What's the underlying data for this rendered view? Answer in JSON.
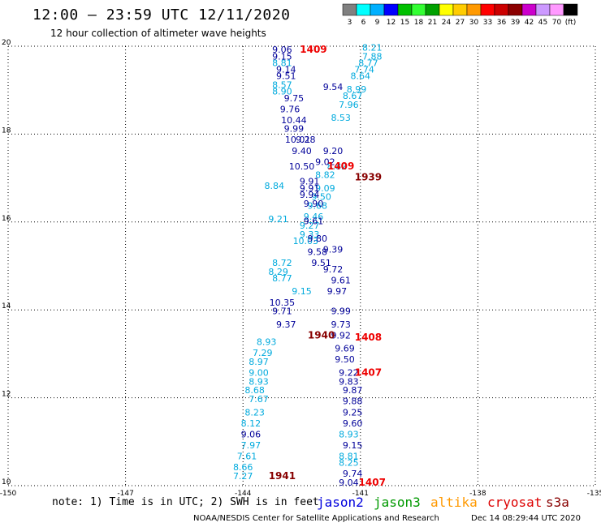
{
  "header": {
    "title": "12:00 – 23:59 UTC 12/11/2020",
    "subtitle": "12 hour collection of altimeter wave heights"
  },
  "colorbar": {
    "labels": [
      "3",
      "6",
      "9",
      "12",
      "15",
      "18",
      "21",
      "24",
      "27",
      "30",
      "33",
      "36",
      "39",
      "42",
      "45",
      "70",
      "(ft)"
    ],
    "colors": [
      "#808080",
      "#00ffff",
      "#00b0ff",
      "#0000ff",
      "#00c000",
      "#33ff33",
      "#00a000",
      "#ffff00",
      "#ffcc00",
      "#ff9900",
      "#ff0000",
      "#cc0000",
      "#8b0000",
      "#cc00cc",
      "#cc99ff",
      "#ff99ff",
      "#000000"
    ]
  },
  "footer": {
    "note": "note: 1) Time is in UTC; 2) SWH is in feet",
    "credit": "NOAA/NESDIS Center for Satellite Applications and Research",
    "timestamp": "Dec 14 08:29:44 UTC 2020"
  },
  "satellites": [
    {
      "name": "jason2",
      "color": "#0000dd"
    },
    {
      "name": "jason3",
      "color": "#009900"
    },
    {
      "name": "altika",
      "color": "#ff9900"
    },
    {
      "name": "cryosat",
      "color": "#dd0000"
    },
    {
      "name": "s3a",
      "color": "#880000"
    }
  ],
  "chart_data": {
    "type": "scatter",
    "xlim": [
      -150,
      -135
    ],
    "ylim": [
      10,
      20
    ],
    "grid": true,
    "x_ticks": [
      "-150",
      "-147",
      "-144",
      "-141",
      "-138",
      "-135"
    ],
    "y_ticks": [
      "10",
      "12",
      "14",
      "16",
      "18",
      "20"
    ],
    "time_labels": [
      {
        "text": "1409",
        "x": -142.2,
        "y": 19.85,
        "color": "#ee0000"
      },
      {
        "text": "1409",
        "x": -141.5,
        "y": 17.2,
        "color": "#ee0000"
      },
      {
        "text": "1939",
        "x": -140.8,
        "y": 16.95,
        "color": "#880000"
      },
      {
        "text": "1940",
        "x": -142.0,
        "y": 13.35,
        "color": "#880000"
      },
      {
        "text": "1408",
        "x": -140.8,
        "y": 13.3,
        "color": "#ee0000"
      },
      {
        "text": "1407",
        "x": -140.8,
        "y": 12.5,
        "color": "#ee0000"
      },
      {
        "text": "1941",
        "x": -143.0,
        "y": 10.15,
        "color": "#880000"
      },
      {
        "text": "1407",
        "x": -140.7,
        "y": 10.0,
        "color": "#ee0000"
      }
    ],
    "series": [
      {
        "name": "track A",
        "color": "#00aadd",
        "points": [
          [
            -140.7,
            19.9,
            8.21
          ],
          [
            -140.7,
            19.7,
            7.88
          ],
          [
            -140.8,
            19.55,
            8.77
          ],
          [
            -140.9,
            19.4,
            7.74
          ],
          [
            -141.0,
            19.25,
            8.64
          ],
          [
            -141.1,
            18.95,
            8.99
          ],
          [
            -141.2,
            18.8,
            8.67
          ],
          [
            -141.3,
            18.6,
            7.96
          ],
          [
            -141.5,
            18.3,
            8.53
          ],
          [
            -141.6,
            17.2,
            8.82
          ],
          [
            -141.9,
            17.0,
            8.82
          ],
          [
            -141.9,
            16.7,
            9.09
          ],
          [
            -142.0,
            16.5,
            9.5
          ],
          [
            -142.1,
            16.3,
            9.68
          ],
          [
            -142.2,
            16.05,
            9.46
          ],
          [
            -142.3,
            15.85,
            9.27
          ],
          [
            -142.3,
            15.65,
            9.33
          ],
          [
            -142.4,
            15.5,
            10.03
          ],
          [
            -142.5,
            14.35,
            9.15
          ],
          [
            -143.0,
            19.55,
            8.81
          ],
          [
            -143.0,
            19.05,
            8.57
          ],
          [
            -143.0,
            18.9,
            8.9
          ],
          [
            -143.2,
            16.75,
            8.84
          ],
          [
            -143.1,
            16.0,
            9.21
          ],
          [
            -143.0,
            15.0,
            8.72
          ],
          [
            -143.1,
            14.8,
            8.29
          ],
          [
            -143.0,
            14.65,
            8.77
          ],
          [
            -143.4,
            13.2,
            8.93
          ],
          [
            -143.5,
            12.95,
            7.29
          ],
          [
            -143.6,
            12.75,
            8.97
          ],
          [
            -143.6,
            12.5,
            9.0
          ],
          [
            -143.6,
            12.3,
            8.93
          ],
          [
            -143.7,
            12.1,
            8.68
          ],
          [
            -143.6,
            11.9,
            7.67
          ],
          [
            -143.7,
            11.6,
            8.23
          ],
          [
            -143.8,
            11.35,
            8.12
          ],
          [
            -143.8,
            10.85,
            7.97
          ],
          [
            -143.9,
            10.6,
            7.61
          ],
          [
            -144.0,
            10.35,
            8.66
          ],
          [
            -144.0,
            10.15,
            7.27
          ],
          [
            -141.3,
            11.1,
            8.93
          ],
          [
            -141.3,
            10.6,
            8.81
          ],
          [
            -141.3,
            10.45,
            8.25
          ]
        ]
      },
      {
        "name": "track B",
        "color": "#000099",
        "points": [
          [
            -143.0,
            19.85,
            9.06
          ],
          [
            -143.0,
            19.7,
            9.15
          ],
          [
            -142.9,
            19.4,
            9.14
          ],
          [
            -142.9,
            19.25,
            9.51
          ],
          [
            -142.7,
            18.75,
            9.75
          ],
          [
            -142.8,
            18.5,
            9.76
          ],
          [
            -142.7,
            18.25,
            10.44
          ],
          [
            -142.7,
            18.05,
            9.99
          ],
          [
            -142.6,
            17.8,
            10.01
          ],
          [
            -142.5,
            17.55,
            9.4
          ],
          [
            -142.5,
            17.2,
            10.5
          ],
          [
            -142.3,
            16.85,
            9.91
          ],
          [
            -142.3,
            16.7,
            9.91
          ],
          [
            -142.3,
            16.55,
            9.94
          ],
          [
            -142.2,
            16.35,
            9.9
          ],
          [
            -142.2,
            15.95,
            9.61
          ],
          [
            -142.1,
            15.55,
            9.8
          ],
          [
            -142.1,
            15.25,
            9.58
          ],
          [
            -142.0,
            15.0,
            9.51
          ],
          [
            -141.7,
            15.3,
            9.39
          ],
          [
            -141.7,
            14.85,
            9.72
          ],
          [
            -141.5,
            14.6,
            9.61
          ],
          [
            -141.6,
            14.35,
            9.97
          ],
          [
            -143.0,
            14.1,
            10.35
          ],
          [
            -143.0,
            13.9,
            9.71
          ],
          [
            -142.9,
            13.6,
            9.37
          ],
          [
            -141.5,
            13.9,
            9.99
          ],
          [
            -141.5,
            13.6,
            9.73
          ],
          [
            -141.5,
            13.35,
            9.92
          ],
          [
            -141.4,
            13.05,
            9.69
          ],
          [
            -141.4,
            12.8,
            9.5
          ],
          [
            -141.3,
            12.5,
            9.22
          ],
          [
            -141.3,
            12.3,
            9.83
          ],
          [
            -141.2,
            12.1,
            9.87
          ],
          [
            -141.2,
            11.85,
            9.88
          ],
          [
            -141.2,
            11.6,
            9.25
          ],
          [
            -141.2,
            11.35,
            9.6
          ],
          [
            -141.2,
            10.85,
            9.15
          ],
          [
            -141.2,
            10.2,
            9.74
          ],
          [
            -141.3,
            10.0,
            9.04
          ],
          [
            -143.8,
            11.1,
            9.06
          ],
          [
            -142.4,
            17.8,
            9.28
          ],
          [
            -141.7,
            17.55,
            9.2
          ],
          [
            -141.9,
            17.3,
            9.02
          ],
          [
            -141.7,
            19.0,
            9.54
          ]
        ]
      }
    ]
  }
}
